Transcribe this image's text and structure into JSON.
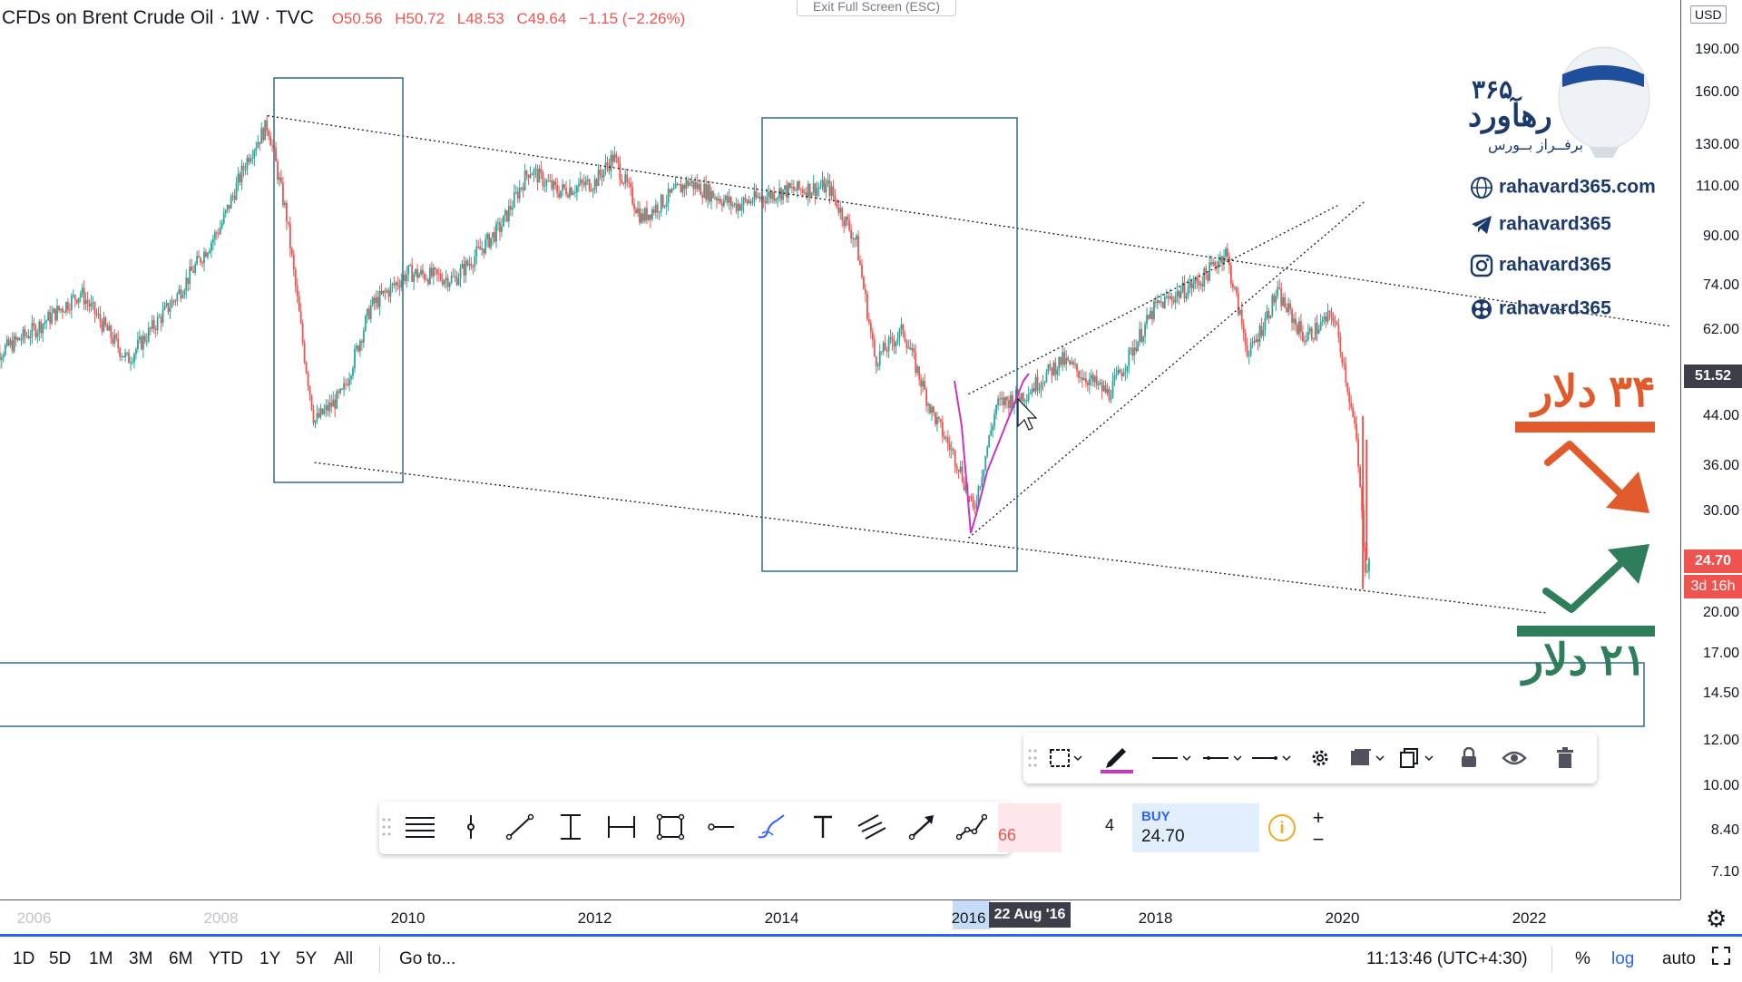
{
  "legend": {
    "symbol": "CFDs on Brent Crude Oil · 1W · TVC",
    "open": "O50.56",
    "high": "H50.72",
    "low": "L48.53",
    "close": "C49.64",
    "change": "−1.15 (−2.26%)"
  },
  "esc_button": "Exit Full Screen (ESC)",
  "price_axis": {
    "currency": "USD",
    "labels": [
      "190.00",
      "160.00",
      "130.00",
      "110.00",
      "90.00",
      "74.00",
      "62.00",
      "44.00",
      "36.00",
      "30.00",
      "20.00",
      "17.00",
      "14.50",
      "12.00",
      "10.00",
      "8.40",
      "7.10"
    ],
    "current_price": "51.52",
    "last_price": "24.70",
    "countdown": "3d 16h"
  },
  "time_axis": {
    "years": [
      "2006",
      "2008",
      "2010",
      "2012",
      "2014",
      "2016",
      "2018",
      "2020",
      "2022"
    ],
    "crosshair_date": "22 Aug '16"
  },
  "branding": {
    "logo_number": "۳۶۵",
    "logo_name": "رهآورد",
    "logo_tagline": "برفــراز بــورس",
    "website": "rahavard365.com",
    "telegram": "rahavard365",
    "instagram": "rahavard365",
    "aparat": "rahavard365"
  },
  "annotations": {
    "upper_target": "۳۴ دلار",
    "lower_target": "۲۱ دلار"
  },
  "order_panel": {
    "sell_price": "66",
    "quantity": "4",
    "buy_label": "BUY",
    "buy_price": "24.70",
    "plus": "+",
    "minus": "−"
  },
  "bottom_bar": {
    "timeframes": [
      "1D",
      "5D",
      "1M",
      "3M",
      "6M",
      "YTD",
      "1Y",
      "5Y",
      "All"
    ],
    "goto": "Go to...",
    "clock": "11:13:46 (UTC+4:30)",
    "percent": "%",
    "log": "log",
    "auto": "auto"
  },
  "colors": {
    "up_candle": "#26a69a",
    "down_candle": "#ef5350",
    "accent_blue": "#2962ff",
    "box_stroke": "#2b6d8a",
    "brush_magenta": "#c934c2",
    "orange_red": "#e15a2b",
    "green_arrow": "#2e7d5b"
  },
  "chart_data": {
    "type": "candlestick",
    "title": "CFDs on Brent Crude Oil",
    "xlabel": "",
    "ylabel": "",
    "y_scale": "log",
    "ylim": [
      6.5,
      230
    ],
    "x_range": [
      2005.5,
      2023.5
    ],
    "series": [
      {
        "x": [
          2005.5,
          2006.0,
          2006.5,
          2007.0,
          2007.5,
          2008.0,
          2008.3,
          2008.5,
          2008.7,
          2008.9,
          2009.0,
          2009.3,
          2009.6,
          2010.0,
          2010.5,
          2011.0,
          2011.3,
          2011.6,
          2012.0,
          2012.2,
          2012.5,
          2013.0,
          2013.5,
          2014.0,
          2014.5,
          2014.8,
          2015.0,
          2015.3,
          2015.6,
          2015.9,
          2016.05,
          2016.3,
          2016.6,
          2017.0,
          2017.5,
          2018.0,
          2018.5,
          2018.75,
          2019.0,
          2019.3,
          2019.6,
          2019.9,
          2020.0,
          2020.15,
          2020.25,
          2020.3
        ],
        "values": [
          55,
          62,
          72,
          55,
          70,
          94,
          125,
          141,
          98,
          55,
          43,
          48,
          68,
          78,
          76,
          94,
          118,
          108,
          112,
          124,
          97,
          112,
          102,
          108,
          110,
          88,
          55,
          62,
          45,
          36,
          30,
          46,
          48,
          55,
          48,
          68,
          76,
          85,
          56,
          72,
          60,
          66,
          56,
          40,
          24,
          24.7
        ]
      }
    ],
    "trendlines": [
      {
        "name": "upper-channel",
        "from": [
          2008.5,
          146
        ],
        "to": [
          2023.5,
          63
        ]
      },
      {
        "name": "lower-channel",
        "from": [
          2009.0,
          36.5
        ],
        "to": [
          2022.2,
          20.0
        ]
      },
      {
        "name": "rising-wedge-upper",
        "from": [
          2016.0,
          48
        ],
        "to": [
          2019.95,
          102
        ]
      },
      {
        "name": "rising-wedge-lower",
        "from": [
          2016.0,
          27
        ],
        "to": [
          2020.25,
          104
        ]
      }
    ]
  }
}
